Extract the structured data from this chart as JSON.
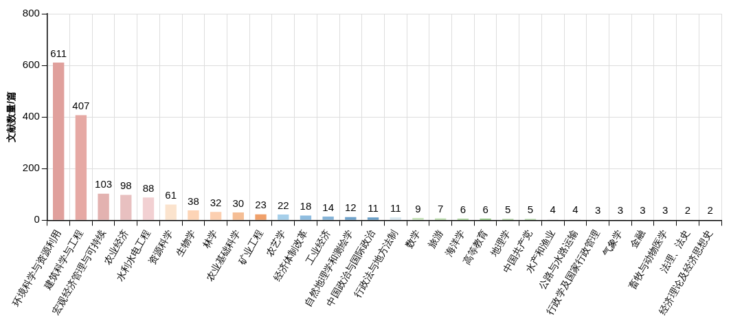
{
  "chart_data": {
    "type": "bar",
    "ylabel": "文献数量/篇",
    "categories": [
      "环境科学与资源利用",
      "建筑科学与工程",
      "宏观经济管理与可持续",
      "农业经济",
      "水利水电工程",
      "资源科学",
      "生物学",
      "林学",
      "农业基础科学",
      "矿业工程",
      "农艺学",
      "经济体制改革",
      "工业经济",
      "自然地理学和测绘学",
      "中国政治与国际政治",
      "行政法与地方法制",
      "数学",
      "旅游",
      "海洋学",
      "高等教育",
      "地理学",
      "中国共产党",
      "水产和渔业",
      "公路与水路运输",
      "行政学及国家行政管理",
      "气象学",
      "金融",
      "畜牧与动物医学",
      "法理、法史",
      "经济理论及经济思想史"
    ],
    "values": [
      611,
      407,
      103,
      98,
      88,
      61,
      38,
      32,
      30,
      23,
      22,
      18,
      14,
      12,
      11,
      11,
      9,
      7,
      6,
      6,
      5,
      5,
      4,
      4,
      3,
      3,
      3,
      3,
      2,
      2
    ],
    "colors": [
      "#e0a09c",
      "#e6a9a4",
      "#e3b2b0",
      "#e8c0c0",
      "#f2d0d2",
      "#fbe3cd",
      "#fdd4b6",
      "#fccfb0",
      "#f5be95",
      "#f0a06a",
      "#a6cfea",
      "#8fbde0",
      "#86b4d8",
      "#6fa3cc",
      "#6a9fc8",
      "#d8e8f0",
      "#c8e4bc",
      "#b8dca8",
      "#a8d49a",
      "#8cc47c",
      "#a0cc90",
      "#a8d49a",
      "#eeeeee",
      "#eeeeee",
      "#eeeeee",
      "#eeeeee",
      "#eeeeee",
      "#eeeeee",
      "#eeeeee",
      "#eeeeee"
    ],
    "ylim": [
      0,
      800
    ],
    "yticks": [
      0,
      200,
      400,
      600,
      800
    ],
    "grid": true,
    "data_labels": true
  }
}
